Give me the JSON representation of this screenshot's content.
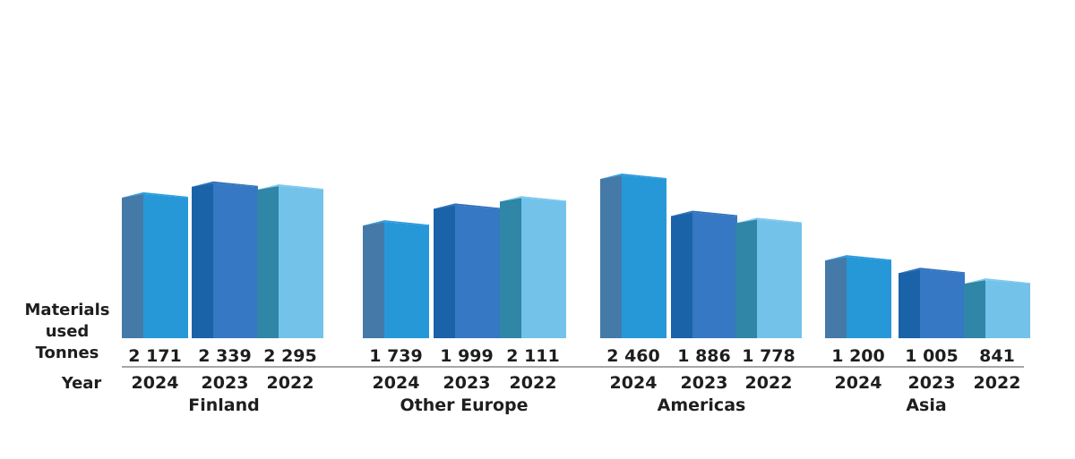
{
  "chart_data": {
    "type": "bar",
    "style": "3d-columns",
    "row_labels": {
      "measure": [
        "Materials",
        "used",
        "Tonnes"
      ],
      "year": "Year"
    },
    "ylim": [
      0,
      2600
    ],
    "grid": false,
    "legend": "none",
    "groups": [
      {
        "region": "Finland",
        "years": [
          "2024",
          "2023",
          "2022"
        ],
        "values": [
          2171,
          2339,
          2295
        ],
        "labels": [
          "2 171",
          "2 339",
          "2 295"
        ]
      },
      {
        "region": "Other Europe",
        "years": [
          "2024",
          "2023",
          "2022"
        ],
        "values": [
          1739,
          1999,
          2111
        ],
        "labels": [
          "1 739",
          "1 999",
          "2 111"
        ]
      },
      {
        "region": "Americas",
        "years": [
          "2024",
          "2023",
          "2022"
        ],
        "values": [
          2460,
          1886,
          1778
        ],
        "labels": [
          "2 460",
          "1 886",
          "1 778"
        ]
      },
      {
        "region": "Asia",
        "years": [
          "2024",
          "2023",
          "2022"
        ],
        "values": [
          1200,
          1005,
          841
        ],
        "labels": [
          "1 200",
          "1 005",
          "841"
        ]
      }
    ],
    "colors": {
      "2024": {
        "front": "#2698d8",
        "side": "#4579a8",
        "top": "#2a9be0"
      },
      "2023": {
        "front": "#3678c4",
        "side": "#1a63a9",
        "top": "#2c6fbb"
      },
      "2022": {
        "front": "#72c2ea",
        "side": "#2f86a6",
        "top": "#7dc8ee"
      },
      "axis_line": "#888888",
      "text": "#1e1e1e"
    }
  }
}
